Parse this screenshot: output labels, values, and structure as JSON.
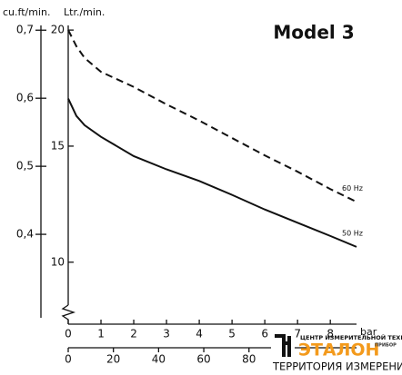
{
  "chart_data": {
    "type": "line",
    "title": "Model 3",
    "ylabel": "Ltr./min.",
    "y2label": "cu.ft/min.",
    "xlabel": "bar",
    "x": [
      0,
      0.25,
      0.5,
      1,
      2,
      3,
      4,
      5,
      6,
      7,
      8,
      8.8
    ],
    "series": [
      {
        "name": "60 Hz",
        "color": "#111111",
        "dash": true,
        "values": [
          20,
          19.3,
          18.8,
          18.2,
          17.55,
          16.8,
          16.1,
          15.35,
          14.6,
          13.9,
          13.15,
          12.6
        ]
      },
      {
        "name": "50 Hz",
        "color": "#111111",
        "dash": false,
        "values": [
          17.05,
          16.3,
          15.9,
          15.4,
          14.57,
          14.0,
          13.5,
          12.9,
          12.27,
          11.7,
          11.13,
          10.66
        ]
      }
    ],
    "xlim": [
      0,
      8.8
    ],
    "xticks": [
      0,
      1,
      2,
      3,
      4,
      5,
      6,
      7,
      8
    ],
    "x2lim": [
      0,
      127.6
    ],
    "x2ticks": [
      0,
      20,
      40,
      60,
      80
    ],
    "ylim": [
      7.8,
      20.2
    ],
    "yticks": [
      10,
      15,
      20
    ],
    "y2lim": [
      0.284,
      0.707
    ],
    "y2ticks": [
      {
        "value": 0.4,
        "label": "0,4"
      },
      {
        "value": 0.5,
        "label": "0,5"
      },
      {
        "value": 0.6,
        "label": "0,6"
      },
      {
        "value": 0.7,
        "label": "0,7"
      }
    ],
    "grid": false
  },
  "logo": {
    "top": "ЦЕНТР ИЗМЕРИТЕЛЬНОЙ ТЕХНИКИ",
    "brand": "ЭТАЛОН",
    "badge": "ПРИБОР",
    "bottom": "ТЕРРИТОРИЯ ИЗМЕРЕНИЙ"
  }
}
